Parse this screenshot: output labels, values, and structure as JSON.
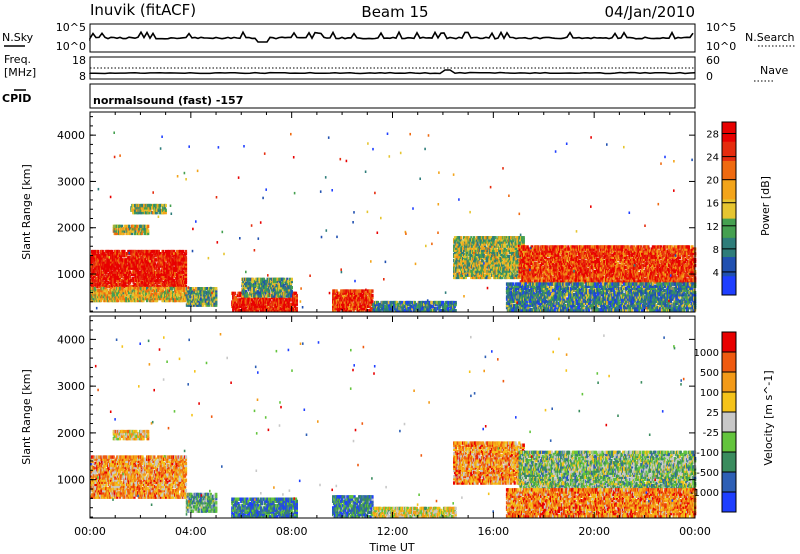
{
  "header": {
    "station": "Inuvik (fitACF)",
    "beam": "Beam 15",
    "date": "04/Jan/2010"
  },
  "top_panels": {
    "nsky_label": "N.Sky",
    "nsky_ticks": [
      "10^5",
      "10^0"
    ],
    "nsearch_label": "N.Search",
    "nsearch_ticks": [
      "10^5",
      "10^0"
    ],
    "freq_label_1": "Freq.",
    "freq_label_2": "[MHz]",
    "freq_ticks": [
      "18",
      "8"
    ],
    "nave_label": "Nave",
    "nave_ticks": [
      "60",
      "0"
    ],
    "cpid_label": "CPID",
    "cpid_text": "normalsound (fast) -157"
  },
  "chart_data": [
    {
      "type": "heatmap",
      "title": "",
      "xlabel": "Time UT",
      "ylabel": "Slant Range [km]",
      "x_ticks": [
        "00:00",
        "04:00",
        "08:00",
        "12:00",
        "16:00",
        "20:00",
        "00:00"
      ],
      "y_ticks": [
        "1000",
        "2000",
        "3000",
        "4000"
      ],
      "ylim": [
        180,
        4500
      ],
      "xlim_hours": [
        0,
        24
      ],
      "colorbar": {
        "label": "Power [dB]",
        "ticks": [
          "4",
          "8",
          "12",
          "16",
          "20",
          "24",
          "28"
        ],
        "range": [
          0,
          30
        ],
        "colors": [
          "#1f3fff",
          "#2050b0",
          "#2e7d7a",
          "#45a050",
          "#e6c530",
          "#f3a41a",
          "#ef6a10",
          "#e52c0e",
          "#e80000"
        ]
      },
      "echo_regions": [
        {
          "t": [
            0.0,
            3.8
          ],
          "r": [
            700,
            1500
          ],
          "level": 0.92
        },
        {
          "t": [
            0.0,
            3.8
          ],
          "r": [
            400,
            700
          ],
          "level": 0.55
        },
        {
          "t": [
            0.9,
            2.3
          ],
          "r": [
            1850,
            2050
          ],
          "level": 0.5
        },
        {
          "t": [
            1.6,
            3.0
          ],
          "r": [
            2300,
            2500
          ],
          "level": 0.45
        },
        {
          "t": [
            3.8,
            5.0
          ],
          "r": [
            300,
            700
          ],
          "level": 0.35
        },
        {
          "t": [
            5.6,
            8.2
          ],
          "r": [
            180,
            600
          ],
          "level": 0.9
        },
        {
          "t": [
            6.0,
            8.0
          ],
          "r": [
            500,
            900
          ],
          "level": 0.35
        },
        {
          "t": [
            9.6,
            11.2
          ],
          "r": [
            180,
            650
          ],
          "level": 0.85
        },
        {
          "t": [
            11.2,
            14.5
          ],
          "r": [
            180,
            400
          ],
          "level": 0.25
        },
        {
          "t": [
            14.4,
            17.2
          ],
          "r": [
            900,
            1800
          ],
          "level": 0.45
        },
        {
          "t": [
            17.0,
            24.0
          ],
          "r": [
            800,
            1600
          ],
          "level": 0.82
        },
        {
          "t": [
            16.5,
            24.0
          ],
          "r": [
            200,
            800
          ],
          "level": 0.28
        }
      ]
    },
    {
      "type": "heatmap",
      "title": "",
      "xlabel": "Time UT",
      "ylabel": "Slant Range [km]",
      "x_ticks": [
        "00:00",
        "04:00",
        "08:00",
        "12:00",
        "16:00",
        "20:00",
        "00:00"
      ],
      "y_ticks": [
        "1000",
        "2000",
        "3000",
        "4000"
      ],
      "ylim": [
        180,
        4500
      ],
      "xlim_hours": [
        0,
        24
      ],
      "colorbar": {
        "label": "Velocity [m s^-1]",
        "ticks": [
          "1000",
          "500",
          "100",
          "25",
          "-25",
          "-100",
          "-500",
          "-1000"
        ],
        "colors": [
          "#1f3fff",
          "#2e5fb5",
          "#3a8c5e",
          "#63c43c",
          "#c8c8c8",
          "#f5c31a",
          "#f39a18",
          "#ef5a10",
          "#e80000"
        ]
      },
      "echo_regions": [
        {
          "t": [
            0.0,
            3.8
          ],
          "r": [
            600,
            1500
          ],
          "level": 0.7
        },
        {
          "t": [
            0.9,
            2.3
          ],
          "r": [
            1850,
            2050
          ],
          "level": 0.6
        },
        {
          "t": [
            3.8,
            5.0
          ],
          "r": [
            300,
            700
          ],
          "level": 0.35
        },
        {
          "t": [
            5.6,
            8.2
          ],
          "r": [
            180,
            600
          ],
          "level": 0.22
        },
        {
          "t": [
            9.6,
            11.2
          ],
          "r": [
            180,
            650
          ],
          "level": 0.25
        },
        {
          "t": [
            11.2,
            14.5
          ],
          "r": [
            180,
            400
          ],
          "level": 0.55
        },
        {
          "t": [
            14.4,
            17.2
          ],
          "r": [
            900,
            1800
          ],
          "level": 0.72
        },
        {
          "t": [
            17.0,
            24.0
          ],
          "r": [
            800,
            1600
          ],
          "level": 0.4
        },
        {
          "t": [
            16.5,
            24.0
          ],
          "r": [
            200,
            800
          ],
          "level": 0.75
        }
      ]
    }
  ]
}
